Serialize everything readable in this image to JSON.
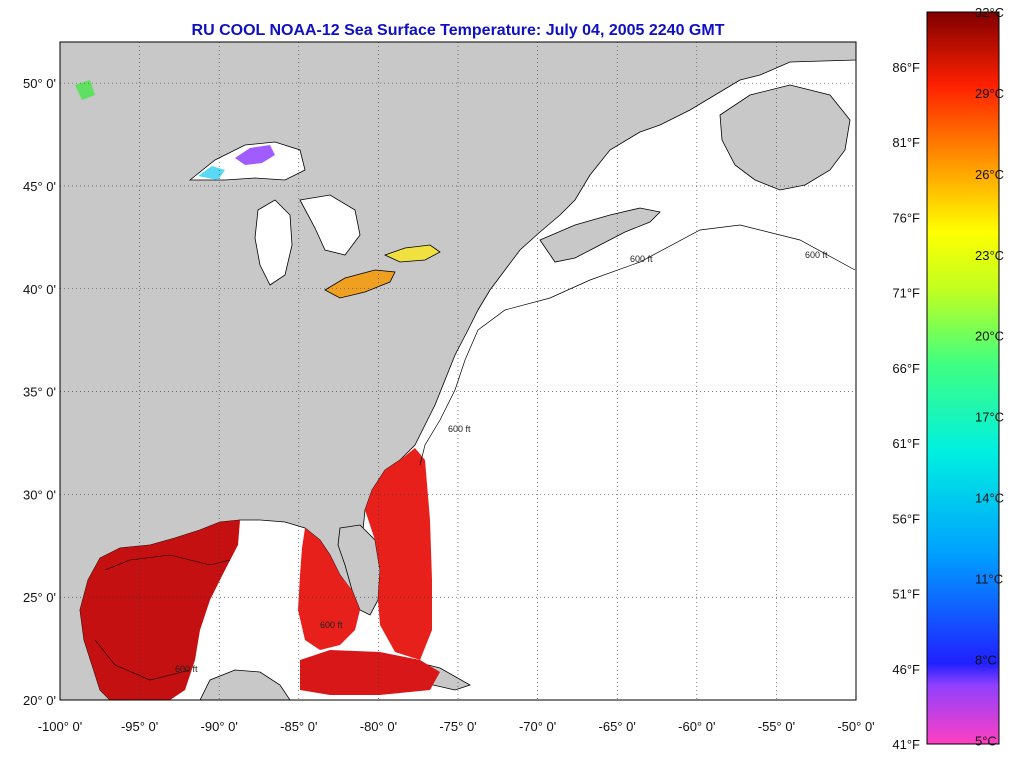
{
  "title": "RU COOL  NOAA-12  Sea Surface Temperature:  July 04, 2005 2240 GMT",
  "map": {
    "lon_range": [
      -100,
      -50
    ],
    "lat_range": [
      20,
      52
    ],
    "lon_ticks": [
      "-100° 0'",
      "-95° 0'",
      "-90° 0'",
      "-85° 0'",
      "-80° 0'",
      "-75° 0'",
      "-70° 0'",
      "-65° 0'",
      "-60° 0'",
      "-55° 0'",
      "-50° 0'"
    ],
    "lat_ticks": [
      "50° 0'",
      "45° 0'",
      "40° 0'",
      "35° 0'",
      "30° 0'",
      "25° 0'",
      "20° 0'"
    ],
    "contour_label": "600 ft",
    "colors": {
      "land": "#c8c8c8",
      "water_nodata": "#ffffff",
      "warm_sst": "#e8201c",
      "hot_sst": "#c41010",
      "lake_erie": "#f0a020",
      "lake_ontario": "#f0e040"
    }
  },
  "colorbar": {
    "celsius": [
      "32°C",
      "29°C",
      "26°C",
      "23°C",
      "20°C",
      "17°C",
      "14°C",
      "11°C",
      "8°C",
      "5°C"
    ],
    "fahrenheit": [
      "86°F",
      "81°F",
      "76°F",
      "71°F",
      "66°F",
      "61°F",
      "56°F",
      "51°F",
      "46°F",
      "41°F"
    ]
  }
}
